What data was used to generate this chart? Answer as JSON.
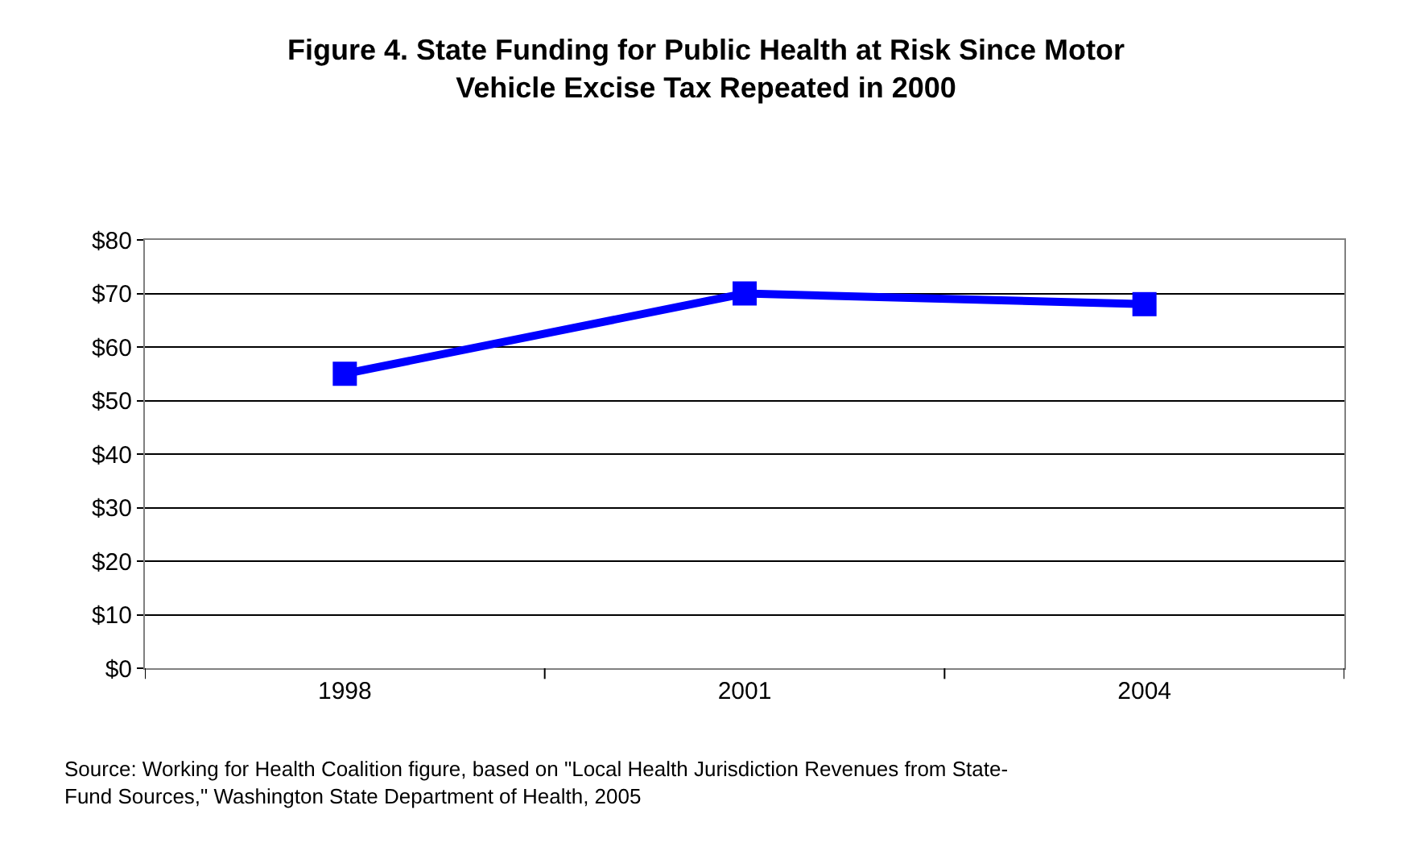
{
  "chart_data": {
    "type": "line",
    "title": "Figure 4. State Funding for Public Health at Risk Since Motor Vehicle Excise Tax Repeated in 2000",
    "categories": [
      "1998",
      "2001",
      "2004"
    ],
    "series": [
      {
        "color": "#0000ff",
        "values": [
          55,
          70,
          68
        ]
      }
    ],
    "ylim": [
      0,
      80
    ],
    "yticks": [
      {
        "value": 0,
        "label": "$0"
      },
      {
        "value": 10,
        "label": "$10"
      },
      {
        "value": 20,
        "label": "$20"
      },
      {
        "value": 30,
        "label": "$30"
      },
      {
        "value": 40,
        "label": "$40"
      },
      {
        "value": 50,
        "label": "$50"
      },
      {
        "value": 60,
        "label": "$60"
      },
      {
        "value": 70,
        "label": "$70"
      },
      {
        "value": 80,
        "label": "$80"
      }
    ],
    "grid": "y",
    "marker": "square",
    "line_style": "solid",
    "annotations": [
      "Source: Working for Health Coalition figure, based on \"Local Health Jurisdiction Revenues from State-Fund Sources,\" Washington State Department of Health, 2005"
    ]
  }
}
